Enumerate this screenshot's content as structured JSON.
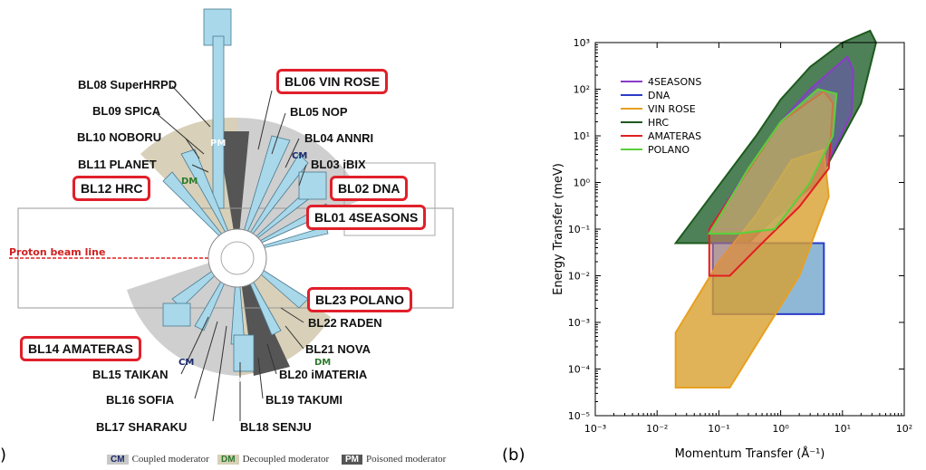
{
  "panel_a": {
    "label": ")",
    "proton_label": "Proton beam line",
    "beamlines": [
      {
        "name": "BL08 SuperHRPD",
        "hl": false
      },
      {
        "name": "BL09 SPICA",
        "hl": false
      },
      {
        "name": "BL10 NOBORU",
        "hl": false
      },
      {
        "name": "BL11 PLANET",
        "hl": false
      },
      {
        "name": "BL12 HRC",
        "hl": true
      },
      {
        "name": "BL06 VIN ROSE",
        "hl": true
      },
      {
        "name": "BL05 NOP",
        "hl": false
      },
      {
        "name": "BL04 ANNRI",
        "hl": false
      },
      {
        "name": "BL03 iBIX",
        "hl": false
      },
      {
        "name": "BL02 DNA",
        "hl": true
      },
      {
        "name": "BL01 4SEASONS",
        "hl": true
      },
      {
        "name": "BL23 POLANO",
        "hl": true
      },
      {
        "name": "BL22 RADEN",
        "hl": false
      },
      {
        "name": "BL21 NOVA",
        "hl": false
      },
      {
        "name": "BL20 iMATERIA",
        "hl": false
      },
      {
        "name": "BL19 TAKUMI",
        "hl": false
      },
      {
        "name": "BL18 SENJU",
        "hl": false
      },
      {
        "name": "BL17 SHARAKU",
        "hl": false
      },
      {
        "name": "BL16 SOFIA",
        "hl": false
      },
      {
        "name": "BL15 TAIKAN",
        "hl": false
      },
      {
        "name": "BL14 AMATERAS",
        "hl": true
      }
    ],
    "moderator_tags": {
      "cm": "CM",
      "dm": "DM",
      "pm": "PM"
    },
    "legend": [
      {
        "tag": "CM",
        "text": "Coupled moderator",
        "bg": "#c8c8c8",
        "fg": "#1a2a6c"
      },
      {
        "tag": "DM",
        "text": "Decoupled moderator",
        "bg": "#d8d0b8",
        "fg": "#2a7a2a"
      },
      {
        "tag": "PM",
        "text": "Poisoned moderator",
        "bg": "#555555",
        "fg": "#ffffff"
      }
    ]
  },
  "panel_b": {
    "label": "(b)",
    "chart_data": {
      "type": "area",
      "xlabel": "Momentum Transfer (Å⁻¹)",
      "ylabel": "Energy Transfer (meV)",
      "xscale": "log",
      "yscale": "log",
      "xlim": [
        0.001,
        100
      ],
      "ylim": [
        1e-05,
        1000
      ],
      "x_ticks": [
        "10^-3",
        "10^-2",
        "10^-1",
        "10^0",
        "10^1",
        "10^2"
      ],
      "y_ticks": [
        "10^-5",
        "10^-4",
        "10^-3",
        "10^-2",
        "10^-1",
        "10^0",
        "10^1",
        "10^2",
        "10^3"
      ],
      "legend_position": "top-left",
      "series": [
        {
          "name": "HRC",
          "color": "#1e5a1e",
          "fill": "#2f6b3a",
          "opacity": 0.85,
          "points": [
            [
              0.02,
              0.05
            ],
            [
              0.4,
              10
            ],
            [
              1,
              60
            ],
            [
              3,
              300
            ],
            [
              10,
              1000
            ],
            [
              28,
              1800
            ],
            [
              35,
              1000
            ],
            [
              20,
              50
            ],
            [
              4,
              1
            ],
            [
              1.2,
              0.3
            ],
            [
              0.3,
              0.05
            ]
          ]
        },
        {
          "name": "4SEASONS",
          "color": "#8a3cc8",
          "fill": "#6a55b0",
          "opacity": 0.6,
          "points": [
            [
              0.07,
              0.1
            ],
            [
              0.3,
              2
            ],
            [
              1,
              20
            ],
            [
              3,
              100
            ],
            [
              12,
              500
            ],
            [
              15,
              250
            ],
            [
              14,
              30
            ],
            [
              6,
              3
            ],
            [
              1.5,
              0.3
            ],
            [
              0.4,
              0.1
            ]
          ]
        },
        {
          "name": "DNA",
          "color": "#2a3cc8",
          "fill": "#6aa0c8",
          "opacity": 0.75,
          "points": [
            [
              0.08,
              0.0015
            ],
            [
              0.08,
              0.05
            ],
            [
              5,
              0.05
            ],
            [
              5,
              0.0015
            ]
          ]
        },
        {
          "name": "VIN ROSE",
          "color": "#e8a020",
          "fill": "#d8a030",
          "opacity": 0.8,
          "points": [
            [
              0.02,
              0.0006
            ],
            [
              0.02,
              4e-05
            ],
            [
              0.15,
              4e-05
            ],
            [
              2,
              0.01
            ],
            [
              6,
              0.5
            ],
            [
              5,
              5
            ],
            [
              1.5,
              3
            ],
            [
              0.4,
              0.2
            ],
            [
              0.1,
              0.02
            ]
          ]
        },
        {
          "name": "AMATERAS",
          "color": "#e02020",
          "fill": "#d88060",
          "opacity": 0.5,
          "points": [
            [
              0.07,
              0.01
            ],
            [
              0.07,
              0.1
            ],
            [
              0.5,
              5
            ],
            [
              1,
              20
            ],
            [
              5,
              90
            ],
            [
              7,
              50
            ],
            [
              6,
              2
            ],
            [
              2,
              0.3
            ],
            [
              0.5,
              0.05
            ],
            [
              0.15,
              0.01
            ]
          ]
        },
        {
          "name": "POLANO",
          "color": "#5ad03a",
          "fill": "#b8c060",
          "opacity": 0.55,
          "points": [
            [
              0.07,
              0.08
            ],
            [
              0.3,
              2
            ],
            [
              1,
              20
            ],
            [
              4,
              100
            ],
            [
              8,
              80
            ],
            [
              7,
              10
            ],
            [
              3,
              1
            ],
            [
              0.8,
              0.1
            ],
            [
              0.2,
              0.08
            ]
          ]
        }
      ]
    }
  }
}
